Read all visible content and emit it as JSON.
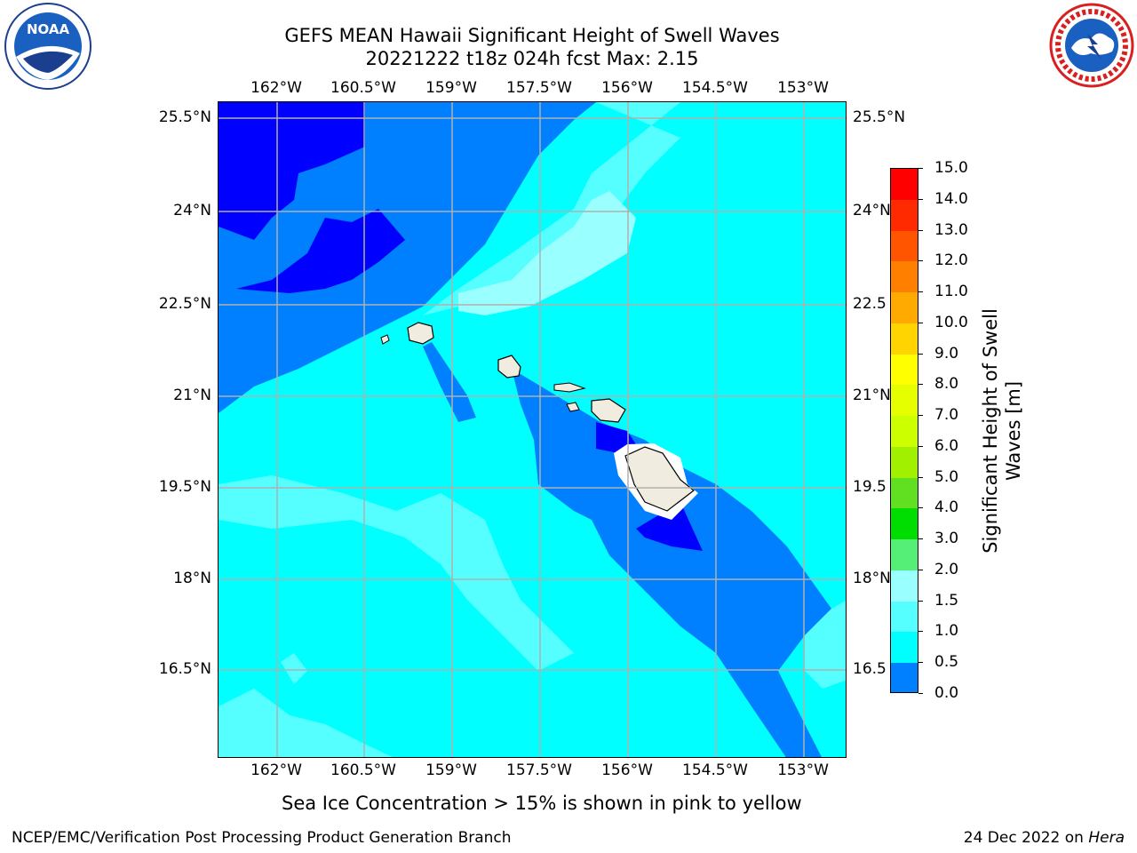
{
  "header": {
    "title_line1": "GEFS MEAN Hawaii Significant Height of Swell Waves",
    "title_line2": "20221222 t18z 024h fcst   Max: 2.15"
  },
  "map": {
    "lon_labels": [
      "162°W",
      "160.5°W",
      "159°W",
      "157.5°W",
      "156°W",
      "154.5°W",
      "153°W"
    ],
    "lat_labels_left": [
      "25.5°N",
      "24°N",
      "22.5°N",
      "21°N",
      "19.5°N",
      "18°N",
      "16.5°N"
    ],
    "lat_labels_right": [
      "25.5°N",
      "24°N",
      "22.5",
      "21°N",
      "19.5",
      "18°N",
      "16.5"
    ]
  },
  "colorbar": {
    "label_line1": "Significant Height of Swell",
    "label_line2": "Waves [m]",
    "ticks": [
      "15.0",
      "14.0",
      "13.0",
      "12.0",
      "11.0",
      "10.0",
      "9.0",
      "8.0",
      "7.0",
      "6.0",
      "5.0",
      "4.0",
      "3.0",
      "2.0",
      "1.5",
      "1.0",
      "0.5",
      "0.0"
    ],
    "colors": [
      "#ff0000",
      "#ff2a00",
      "#ff5500",
      "#ff8000",
      "#ffaa00",
      "#ffd400",
      "#ffff00",
      "#e6ff00",
      "#ccff00",
      "#a0f000",
      "#60e020",
      "#00dd00",
      "#55ee77",
      "#99ffff",
      "#55ffff",
      "#00ffff",
      "#0080ff",
      "#0000ff"
    ]
  },
  "footer": {
    "note": "Sea Ice Concentration > 15% is shown in pink to yellow",
    "left": "NCEP/EMC/Verification Post Processing Product Generation Branch",
    "right_prefix": "24 Dec 2022 on ",
    "right_host": "Hera"
  },
  "logos": {
    "left_text": "NOAA",
    "right_text": "NATIONAL WEATHER SERVICE"
  },
  "colors": {
    "dark_blue": "#0000ff",
    "mid_blue": "#0080ff",
    "cyan": "#00ffff",
    "light_cyan": "#55ffff",
    "pale_cyan": "#99ffff",
    "land": "#f0ede0",
    "grid": "#b0b0b0"
  }
}
